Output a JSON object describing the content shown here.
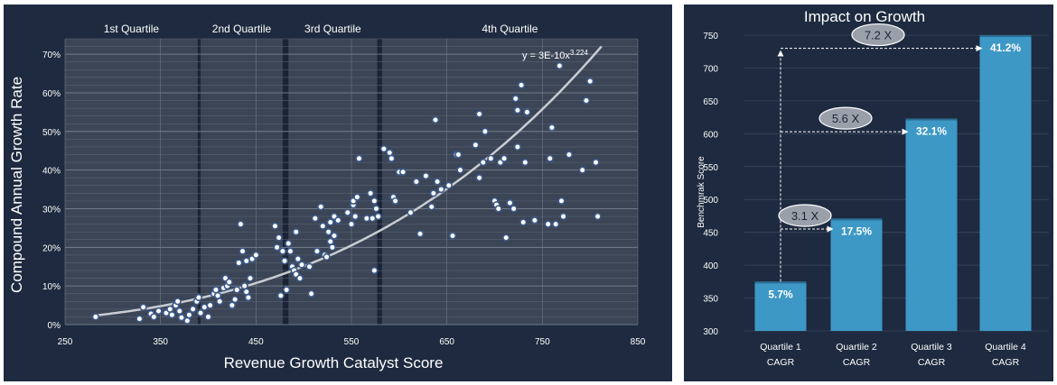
{
  "chart_data": [
    {
      "type": "scatter",
      "xlabel": "Revenue Growth Catalyst Score",
      "ylabel": "Compound Annual Growth Rate",
      "xlim": [
        250,
        850
      ],
      "ylim": [
        0,
        0.74
      ],
      "x_ticks": [
        250,
        350,
        450,
        550,
        650,
        750,
        850
      ],
      "x_tick_labels": [
        "250",
        "350",
        "450",
        "550",
        "650",
        "750",
        "850"
      ],
      "y_ticks": [
        0,
        0.1,
        0.2,
        0.3,
        0.4,
        0.5,
        0.6,
        0.7
      ],
      "y_tick_labels": [
        "0%",
        "10%",
        "20%",
        "30%",
        "40%",
        "50%",
        "60%",
        "70%"
      ],
      "grid": true,
      "quartiles": [
        {
          "label": "1st Quartile",
          "range": [
            250,
            389
          ]
        },
        {
          "label": "2nd Quartile",
          "range": [
            392,
            478
          ]
        },
        {
          "label": "3rd Quartile",
          "range": [
            484,
            577
          ]
        },
        {
          "label": "4th Quartile",
          "range": [
            582,
            850
          ]
        }
      ],
      "trendline": {
        "label": "y = 3E-10x",
        "exponent": "3.224",
        "coefficient": 3e-10,
        "power": 3.224,
        "x_range": [
          280,
          812
        ]
      },
      "points": [
        [
          282,
          0.02
        ],
        [
          328,
          0.015
        ],
        [
          332,
          0.045
        ],
        [
          340,
          0.028
        ],
        [
          343,
          0.02
        ],
        [
          348,
          0.035
        ],
        [
          356,
          0.03
        ],
        [
          360,
          0.04
        ],
        [
          362,
          0.025
        ],
        [
          366,
          0.05
        ],
        [
          368,
          0.06
        ],
        [
          370,
          0.035
        ],
        [
          372,
          0.018
        ],
        [
          378,
          0.01
        ],
        [
          380,
          0.025
        ],
        [
          384,
          0.04
        ],
        [
          388,
          0.06
        ],
        [
          390,
          0.07
        ],
        [
          392,
          0.03
        ],
        [
          396,
          0.045
        ],
        [
          400,
          0.02
        ],
        [
          402,
          0.05
        ],
        [
          406,
          0.08
        ],
        [
          408,
          0.09
        ],
        [
          410,
          0.075
        ],
        [
          412,
          0.06
        ],
        [
          416,
          0.095
        ],
        [
          418,
          0.12
        ],
        [
          420,
          0.1
        ],
        [
          422,
          0.11
        ],
        [
          425,
          0.05
        ],
        [
          428,
          0.065
        ],
        [
          430,
          0.09
        ],
        [
          432,
          0.16
        ],
        [
          434,
          0.26
        ],
        [
          436,
          0.19
        ],
        [
          438,
          0.1
        ],
        [
          440,
          0.085
        ],
        [
          440,
          0.165
        ],
        [
          442,
          0.07
        ],
        [
          444,
          0.12
        ],
        [
          446,
          0.17
        ],
        [
          450,
          0.18
        ],
        [
          470,
          0.255
        ],
        [
          472,
          0.2
        ],
        [
          474,
          0.225
        ],
        [
          476,
          0.075
        ],
        [
          478,
          0.19
        ],
        [
          480,
          0.165
        ],
        [
          482,
          0.09
        ],
        [
          484,
          0.21
        ],
        [
          486,
          0.19
        ],
        [
          488,
          0.15
        ],
        [
          490,
          0.14
        ],
        [
          492,
          0.13
        ],
        [
          492,
          0.24
        ],
        [
          494,
          0.17
        ],
        [
          496,
          0.12
        ],
        [
          498,
          0.155
        ],
        [
          506,
          0.15
        ],
        [
          508,
          0.08
        ],
        [
          512,
          0.275
        ],
        [
          514,
          0.19
        ],
        [
          518,
          0.305
        ],
        [
          520,
          0.255
        ],
        [
          522,
          0.18
        ],
        [
          524,
          0.175
        ],
        [
          526,
          0.24
        ],
        [
          528,
          0.215
        ],
        [
          528,
          0.265
        ],
        [
          530,
          0.2
        ],
        [
          532,
          0.28
        ],
        [
          532,
          0.23
        ],
        [
          536,
          0.27
        ],
        [
          546,
          0.29
        ],
        [
          550,
          0.26
        ],
        [
          552,
          0.31
        ],
        [
          552,
          0.32
        ],
        [
          554,
          0.28
        ],
        [
          556,
          0.33
        ],
        [
          558,
          0.43
        ],
        [
          566,
          0.275
        ],
        [
          570,
          0.34
        ],
        [
          572,
          0.275
        ],
        [
          574,
          0.32
        ],
        [
          574,
          0.14
        ],
        [
          576,
          0.3
        ],
        [
          578,
          0.28
        ],
        [
          584,
          0.455
        ],
        [
          590,
          0.445
        ],
        [
          592,
          0.43
        ],
        [
          594,
          0.33
        ],
        [
          596,
          0.32
        ],
        [
          600,
          0.395
        ],
        [
          604,
          0.395
        ],
        [
          612,
          0.29
        ],
        [
          618,
          0.37
        ],
        [
          622,
          0.235
        ],
        [
          628,
          0.385
        ],
        [
          634,
          0.305
        ],
        [
          636,
          0.34
        ],
        [
          638,
          0.53
        ],
        [
          640,
          0.37
        ],
        [
          644,
          0.35
        ],
        [
          652,
          0.36
        ],
        [
          656,
          0.23
        ],
        [
          660,
          0.44
        ],
        [
          662,
          0.44
        ],
        [
          664,
          0.4
        ],
        [
          680,
          0.465
        ],
        [
          684,
          0.545
        ],
        [
          684,
          0.38
        ],
        [
          688,
          0.42
        ],
        [
          690,
          0.5
        ],
        [
          696,
          0.43
        ],
        [
          700,
          0.32
        ],
        [
          702,
          0.31
        ],
        [
          704,
          0.3
        ],
        [
          706,
          0.42
        ],
        [
          710,
          0.43
        ],
        [
          712,
          0.225
        ],
        [
          716,
          0.315
        ],
        [
          720,
          0.3
        ],
        [
          722,
          0.585
        ],
        [
          724,
          0.46
        ],
        [
          724,
          0.555
        ],
        [
          728,
          0.62
        ],
        [
          730,
          0.265
        ],
        [
          732,
          0.42
        ],
        [
          734,
          0.55
        ],
        [
          742,
          0.27
        ],
        [
          756,
          0.26
        ],
        [
          758,
          0.43
        ],
        [
          760,
          0.51
        ],
        [
          764,
          0.26
        ],
        [
          768,
          0.67
        ],
        [
          770,
          0.32
        ],
        [
          772,
          0.28
        ],
        [
          778,
          0.44
        ],
        [
          792,
          0.4
        ],
        [
          796,
          0.58
        ],
        [
          800,
          0.63
        ],
        [
          806,
          0.42
        ],
        [
          808,
          0.28
        ]
      ]
    },
    {
      "type": "bar",
      "title": "Impact on Growth",
      "ylabel": "Benchmrak Score",
      "ylim": [
        300,
        750
      ],
      "y_ticks": [
        300,
        350,
        400,
        450,
        500,
        550,
        600,
        650,
        700,
        750
      ],
      "y_tick_labels": [
        "300",
        "350",
        "400",
        "450",
        "500",
        "550",
        "600",
        "650",
        "700",
        "750"
      ],
      "grid": true,
      "categories": [
        [
          "Quartile 1",
          "CAGR"
        ],
        [
          "Quartile 2",
          "CAGR"
        ],
        [
          "Quartile 3",
          "CAGR"
        ],
        [
          "Quartile 4",
          "CAGR"
        ]
      ],
      "values": [
        375,
        471,
        623,
        750
      ],
      "data_labels": [
        "5.7%",
        "17.5%",
        "32.1%",
        "41.2%"
      ],
      "multipliers": [
        {
          "label": "3.1 X",
          "from": 0,
          "to": 1,
          "level": 455
        },
        {
          "label": "5.6 X",
          "from": 0,
          "to": 2,
          "level": 603
        },
        {
          "label": "7.2 X",
          "from": 0,
          "to": 3,
          "level": 730
        }
      ],
      "colors": {
        "bar": "#3d98c6",
        "bar_top": "#2b6e94",
        "background": "#1e2a3f"
      }
    }
  ]
}
